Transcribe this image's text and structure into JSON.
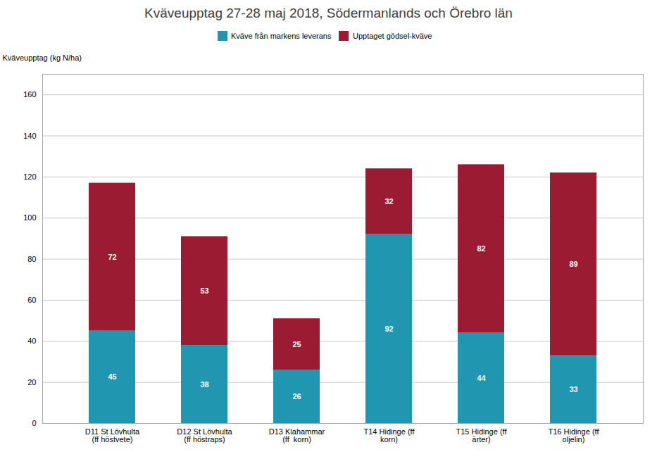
{
  "chart_data": {
    "type": "bar",
    "stacked": true,
    "title": "Kväveupptag 27-28 maj 2018, Södermanlands och Örebro län",
    "ylabel": "Kväveupptag (kg N/ha)",
    "categories": [
      "D11 St Lövhulta\n(ff höstvete)",
      "D12 St Lövhulta\n(ff höstraps)",
      "D13 Klahammar\n(ff  korn)",
      "T14 Hidinge (ff\nkorn)",
      "T15 Hidinge (ff\närter)",
      "T16 Hidinge (ff\noljelin)"
    ],
    "series": [
      {
        "name": "Kväve från markens leverans",
        "color": "#2196b0",
        "values": [
          45,
          38,
          26,
          92,
          44,
          33
        ]
      },
      {
        "name": "Upptaget gödsel-kväve",
        "color": "#9b1b33",
        "values": [
          72,
          53,
          25,
          32,
          82,
          89
        ]
      }
    ],
    "ylim": [
      0,
      170
    ],
    "yticks": [
      0,
      20,
      40,
      60,
      80,
      100,
      120,
      140,
      160
    ],
    "grid": true,
    "legend": "top",
    "data_labels": true
  }
}
